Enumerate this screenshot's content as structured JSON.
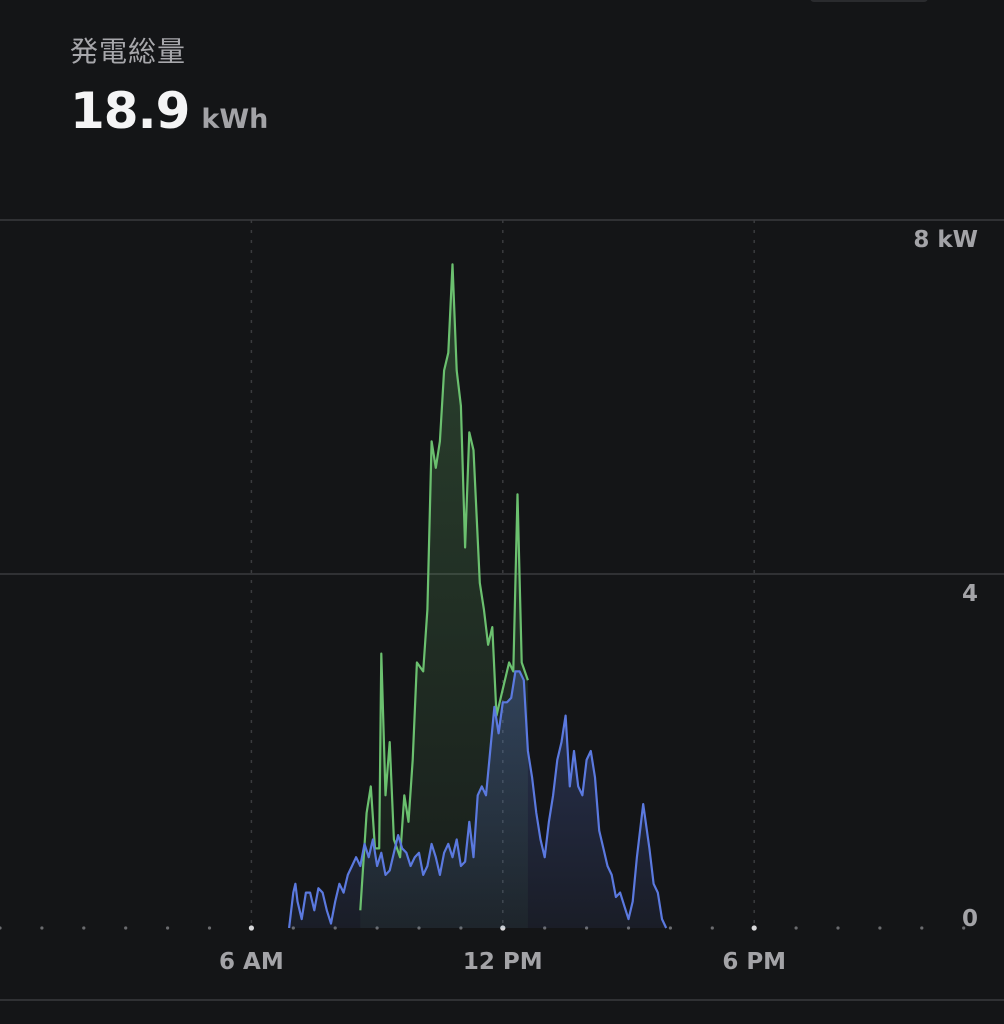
{
  "header": {
    "label": "発電総量",
    "value": "18.9",
    "unit": "kWh"
  },
  "colors": {
    "background": "#141517",
    "solar": "#6bc06f",
    "home": "#5b79df",
    "grid": "#3a3b3e"
  },
  "chart_data": {
    "type": "area",
    "title": "",
    "xlabel": "",
    "ylabel": "",
    "xlim": [
      0,
      24
    ],
    "ylim": [
      0,
      8
    ],
    "x_ticks": [
      {
        "value": 6,
        "label": "6 AM"
      },
      {
        "value": 12,
        "label": "12 PM"
      },
      {
        "value": 18,
        "label": "6 PM"
      }
    ],
    "y_ticks": [
      {
        "value": 8,
        "label": "8 kW"
      },
      {
        "value": 4,
        "label": "4"
      },
      {
        "value": 0,
        "label": "0"
      }
    ],
    "grid": true,
    "series": [
      {
        "name": "",
        "color": "#6bc06f",
        "points": [
          [
            8.6,
            0.2
          ],
          [
            8.75,
            1.3
          ],
          [
            8.85,
            1.6
          ],
          [
            8.95,
            0.9
          ],
          [
            9.05,
            0.9
          ],
          [
            9.1,
            3.1
          ],
          [
            9.2,
            1.5
          ],
          [
            9.3,
            2.1
          ],
          [
            9.4,
            1.0
          ],
          [
            9.55,
            0.8
          ],
          [
            9.65,
            1.5
          ],
          [
            9.75,
            1.2
          ],
          [
            9.85,
            1.9
          ],
          [
            9.95,
            3.0
          ],
          [
            10.1,
            2.9
          ],
          [
            10.2,
            3.6
          ],
          [
            10.3,
            5.5
          ],
          [
            10.4,
            5.2
          ],
          [
            10.5,
            5.5
          ],
          [
            10.6,
            6.3
          ],
          [
            10.7,
            6.5
          ],
          [
            10.8,
            7.5
          ],
          [
            10.9,
            6.3
          ],
          [
            11.0,
            5.9
          ],
          [
            11.1,
            4.3
          ],
          [
            11.2,
            5.6
          ],
          [
            11.3,
            5.4
          ],
          [
            11.45,
            3.9
          ],
          [
            11.55,
            3.6
          ],
          [
            11.65,
            3.2
          ],
          [
            11.75,
            3.4
          ],
          [
            11.85,
            2.4
          ],
          [
            12.0,
            2.7
          ],
          [
            12.15,
            3.0
          ],
          [
            12.25,
            2.9
          ],
          [
            12.35,
            4.9
          ],
          [
            12.45,
            3.0
          ],
          [
            12.6,
            2.8
          ]
        ]
      },
      {
        "name": "",
        "color": "#5b79df",
        "points": [
          [
            6.9,
            0.0
          ],
          [
            7.0,
            0.4
          ],
          [
            7.05,
            0.5
          ],
          [
            7.1,
            0.3
          ],
          [
            7.2,
            0.1
          ],
          [
            7.3,
            0.4
          ],
          [
            7.4,
            0.4
          ],
          [
            7.5,
            0.2
          ],
          [
            7.6,
            0.45
          ],
          [
            7.7,
            0.4
          ],
          [
            7.8,
            0.2
          ],
          [
            7.9,
            0.05
          ],
          [
            8.0,
            0.3
          ],
          [
            8.1,
            0.5
          ],
          [
            8.2,
            0.4
          ],
          [
            8.3,
            0.6
          ],
          [
            8.4,
            0.7
          ],
          [
            8.5,
            0.8
          ],
          [
            8.6,
            0.7
          ],
          [
            8.7,
            0.95
          ],
          [
            8.8,
            0.8
          ],
          [
            8.9,
            1.0
          ],
          [
            9.0,
            0.7
          ],
          [
            9.1,
            0.85
          ],
          [
            9.2,
            0.6
          ],
          [
            9.3,
            0.65
          ],
          [
            9.4,
            0.85
          ],
          [
            9.5,
            1.05
          ],
          [
            9.6,
            0.9
          ],
          [
            9.7,
            0.85
          ],
          [
            9.8,
            0.7
          ],
          [
            9.9,
            0.8
          ],
          [
            10.0,
            0.85
          ],
          [
            10.1,
            0.6
          ],
          [
            10.2,
            0.7
          ],
          [
            10.3,
            0.95
          ],
          [
            10.4,
            0.8
          ],
          [
            10.5,
            0.6
          ],
          [
            10.6,
            0.85
          ],
          [
            10.7,
            0.95
          ],
          [
            10.8,
            0.8
          ],
          [
            10.9,
            1.0
          ],
          [
            11.0,
            0.7
          ],
          [
            11.1,
            0.75
          ],
          [
            11.2,
            1.2
          ],
          [
            11.3,
            0.8
          ],
          [
            11.4,
            1.5
          ],
          [
            11.5,
            1.6
          ],
          [
            11.6,
            1.5
          ],
          [
            11.7,
            2.0
          ],
          [
            11.8,
            2.5
          ],
          [
            11.9,
            2.2
          ],
          [
            12.0,
            2.55
          ],
          [
            12.1,
            2.55
          ],
          [
            12.2,
            2.6
          ],
          [
            12.3,
            2.9
          ],
          [
            12.4,
            2.9
          ],
          [
            12.5,
            2.8
          ],
          [
            12.6,
            2.0
          ],
          [
            12.7,
            1.7
          ],
          [
            12.8,
            1.3
          ],
          [
            12.9,
            1.0
          ],
          [
            13.0,
            0.8
          ],
          [
            13.1,
            1.2
          ],
          [
            13.2,
            1.5
          ],
          [
            13.3,
            1.9
          ],
          [
            13.4,
            2.1
          ],
          [
            13.5,
            2.4
          ],
          [
            13.6,
            1.6
          ],
          [
            13.7,
            2.0
          ],
          [
            13.8,
            1.6
          ],
          [
            13.9,
            1.5
          ],
          [
            14.0,
            1.9
          ],
          [
            14.1,
            2.0
          ],
          [
            14.2,
            1.7
          ],
          [
            14.3,
            1.1
          ],
          [
            14.4,
            0.9
          ],
          [
            14.5,
            0.7
          ],
          [
            14.6,
            0.6
          ],
          [
            14.7,
            0.35
          ],
          [
            14.8,
            0.4
          ],
          [
            14.9,
            0.25
          ],
          [
            15.0,
            0.1
          ],
          [
            15.1,
            0.3
          ],
          [
            15.2,
            0.8
          ],
          [
            15.35,
            1.4
          ],
          [
            15.5,
            0.9
          ],
          [
            15.6,
            0.5
          ],
          [
            15.7,
            0.4
          ],
          [
            15.8,
            0.1
          ],
          [
            15.9,
            0.0
          ]
        ]
      }
    ]
  }
}
